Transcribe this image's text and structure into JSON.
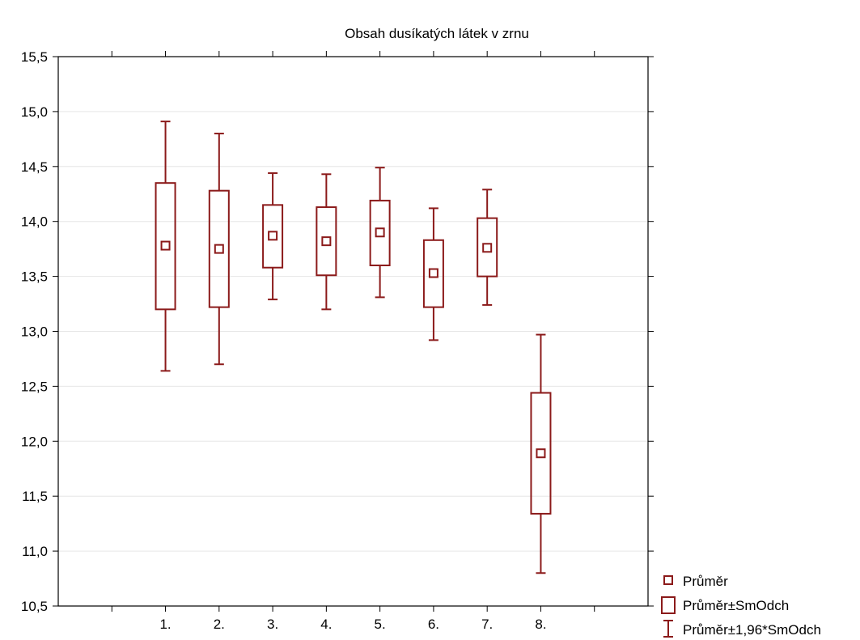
{
  "chart_data": {
    "type": "box",
    "title": "Obsah dusíkatých látek v zrnu",
    "xlabel": "",
    "ylabel": "",
    "categories": [
      "1.",
      "2.",
      "3.",
      "4.",
      "5.",
      "6.",
      "7.",
      "8."
    ],
    "ylim": [
      10.5,
      15.5
    ],
    "yticks": [
      "10,5",
      "11,0",
      "11,5",
      "12,0",
      "12,5",
      "13,0",
      "13,5",
      "14,0",
      "14,5",
      "15,0",
      "15,5"
    ],
    "series": [
      {
        "name": "Průměr",
        "values": [
          13.78,
          13.75,
          13.87,
          13.82,
          13.9,
          13.53,
          13.76,
          11.89
        ]
      },
      {
        "name": "Průměr±SmOdch",
        "low": [
          13.2,
          13.22,
          13.58,
          13.51,
          13.6,
          13.22,
          13.5,
          11.34
        ],
        "high": [
          14.35,
          14.28,
          14.15,
          14.13,
          14.19,
          13.83,
          14.03,
          12.44
        ]
      },
      {
        "name": "Průměr±1,96*SmOdch",
        "low": [
          12.64,
          12.7,
          13.29,
          13.2,
          13.31,
          12.92,
          13.24,
          10.8
        ],
        "high": [
          14.91,
          14.8,
          14.44,
          14.43,
          14.49,
          14.12,
          14.29,
          12.97
        ]
      }
    ],
    "grid": true,
    "legend_position": "bottom-right",
    "color": "#8b1a1a"
  }
}
